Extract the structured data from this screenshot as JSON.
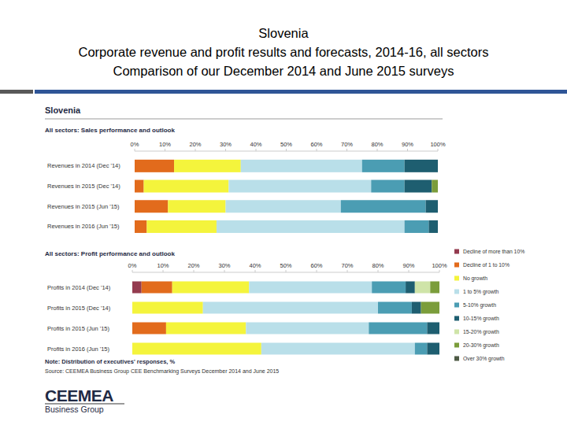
{
  "page": {
    "title": [
      "Slovenia",
      "Corporate revenue and profit results and forecasts, 2014-16, all sectors",
      "Comparison of our December 2014 and June 2015 surveys"
    ],
    "panel_title": "Slovenia",
    "note": "Note: Distribution of executives' responses, %",
    "source": "Source: CEEMEA Business Group CEE Benchmarking Surveys December 2014 and June 2015",
    "logo": {
      "name": "CEEMEA",
      "tagline": "Business Group"
    }
  },
  "chart_data": [
    {
      "type": "bar",
      "title": "All sectors: Sales performance and outlook",
      "orientation": "horizontal",
      "stacked": true,
      "grid": false,
      "categories": [
        "Revenues in 2014 (Dec '14)",
        "Revenues in 2015 (Dec '14)",
        "Revenues in 2015 (Jun '15)",
        "Revenues in 2016 (Jun '15)"
      ],
      "xlim": [
        0,
        100
      ],
      "xticks": [
        {
          "value": 0,
          "label": "0%"
        },
        {
          "value": 10,
          "label": "10%"
        },
        {
          "value": 20,
          "label": "20%"
        },
        {
          "value": 30,
          "label": "30%"
        },
        {
          "value": 40,
          "label": "40%"
        },
        {
          "value": 50,
          "label": "50%"
        },
        {
          "value": 60,
          "label": "60%"
        },
        {
          "value": 70,
          "label": "70%"
        },
        {
          "value": 80,
          "label": "80%"
        },
        {
          "value": 90,
          "label": "90%"
        },
        {
          "value": 100,
          "label": "100%"
        }
      ],
      "series": [
        {
          "name": "Decline of more than 10%",
          "color": "#943b4f",
          "values": [
            0,
            0,
            0,
            0
          ]
        },
        {
          "name": "Decline of 1 to 10%",
          "color": "#e26b1c",
          "values": [
            13,
            3,
            11,
            4
          ]
        },
        {
          "name": "No growth",
          "color": "#f4f43c",
          "values": [
            22,
            28,
            19,
            23
          ]
        },
        {
          "name": "1 to 5% growth",
          "color": "#b9dfe9",
          "values": [
            40,
            47,
            38,
            62
          ]
        },
        {
          "name": "5-10% growth",
          "color": "#4b9db3",
          "values": [
            14,
            11,
            28,
            8
          ]
        },
        {
          "name": "10-15% growth",
          "color": "#1e5e70",
          "values": [
            11,
            9,
            4,
            3
          ]
        },
        {
          "name": "15-20% growth",
          "color": "#cfe4a8",
          "values": [
            0,
            0,
            0,
            0
          ]
        },
        {
          "name": "20-30% growth",
          "color": "#7b9d3b",
          "values": [
            0,
            2,
            0,
            0
          ]
        },
        {
          "name": "Over 30% growth",
          "color": "#4e5b45",
          "values": [
            0,
            0,
            0,
            0
          ]
        }
      ]
    },
    {
      "type": "bar",
      "title": "All sectors: Profit performance and outlook",
      "orientation": "horizontal",
      "stacked": true,
      "grid": false,
      "legend": "right",
      "categories": [
        "Profits in 2014 (Dec '14)",
        "Profits in 2015 (Dec '14)",
        "Profits in 2015 (Jun '15)",
        "Profits in 2016 (Jun '15)"
      ],
      "xlim": [
        0,
        100
      ],
      "xticks": [
        {
          "value": 0,
          "label": "0%"
        },
        {
          "value": 10,
          "label": "10%"
        },
        {
          "value": 20,
          "label": "20%"
        },
        {
          "value": 30,
          "label": "30%"
        },
        {
          "value": 40,
          "label": "40%"
        },
        {
          "value": 50,
          "label": "50%"
        },
        {
          "value": 60,
          "label": "60%"
        },
        {
          "value": 70,
          "label": "70%"
        },
        {
          "value": 80,
          "label": "80%"
        },
        {
          "value": 90,
          "label": "90%"
        },
        {
          "value": 100,
          "label": "100%"
        }
      ],
      "series": [
        {
          "name": "Decline of more than 10%",
          "color": "#943b4f",
          "values": [
            3,
            0,
            0,
            0
          ]
        },
        {
          "name": "Decline of 1 to 10%",
          "color": "#e26b1c",
          "values": [
            10,
            0,
            11,
            0
          ]
        },
        {
          "name": "No growth",
          "color": "#f4f43c",
          "values": [
            25,
            23,
            26,
            42
          ]
        },
        {
          "name": "1 to 5% growth",
          "color": "#b9dfe9",
          "values": [
            40,
            57,
            40,
            50
          ]
        },
        {
          "name": "5-10% growth",
          "color": "#4b9db3",
          "values": [
            11,
            11,
            19,
            4
          ]
        },
        {
          "name": "10-15% growth",
          "color": "#1e5e70",
          "values": [
            3,
            3,
            4,
            4
          ]
        },
        {
          "name": "15-20% growth",
          "color": "#cfe4a8",
          "values": [
            5,
            0,
            0,
            0
          ]
        },
        {
          "name": "20-30% growth",
          "color": "#7b9d3b",
          "values": [
            3,
            6,
            0,
            0
          ]
        },
        {
          "name": "Over 30% growth",
          "color": "#4e5b45",
          "values": [
            0,
            0,
            0,
            0
          ]
        }
      ]
    }
  ]
}
